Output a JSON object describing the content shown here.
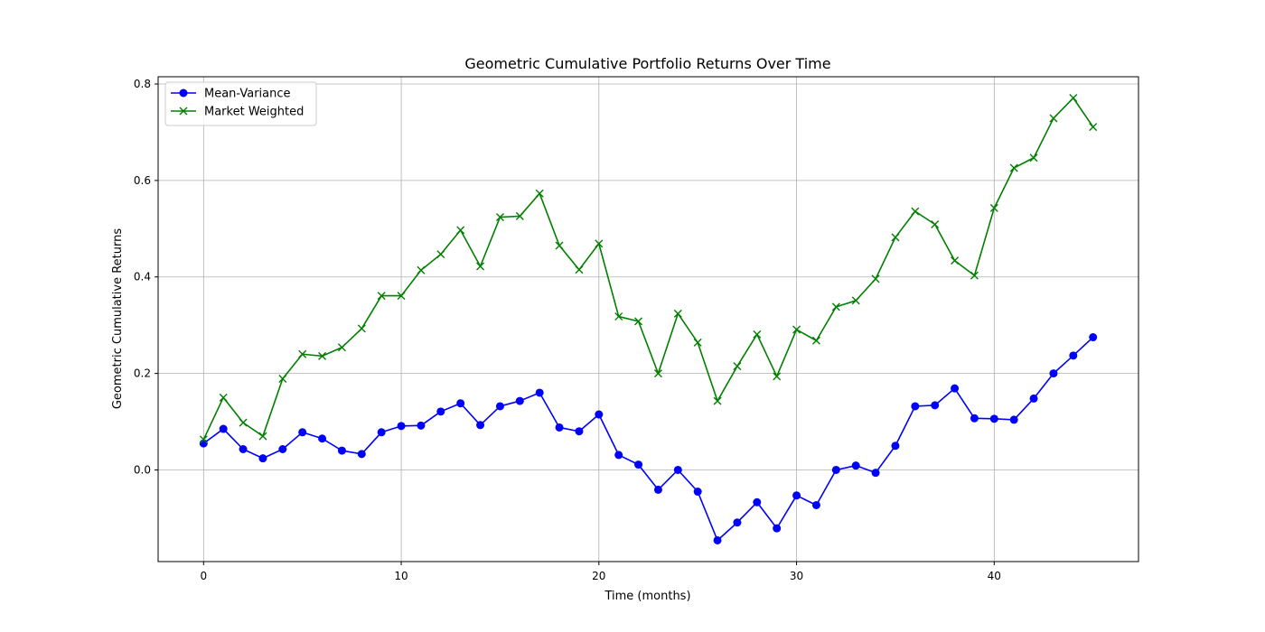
{
  "chart_data": {
    "type": "line",
    "title": "Geometric Cumulative Portfolio Returns Over Time",
    "xlabel": "Time (months)",
    "ylabel": "Geometric Cumulative Returns",
    "xlim": [
      -2.3,
      47.3
    ],
    "ylim": [
      -0.19,
      0.815
    ],
    "xticks": [
      0,
      10,
      20,
      30,
      40
    ],
    "yticks": [
      0.0,
      0.2,
      0.4,
      0.6,
      0.8
    ],
    "ytick_labels": [
      "0.0",
      "0.2",
      "0.4",
      "0.6",
      "0.8"
    ],
    "xtick_labels": [
      "0",
      "10",
      "20",
      "30",
      "40"
    ],
    "grid": true,
    "legend_position": "top-left",
    "x": [
      0,
      1,
      2,
      3,
      4,
      5,
      6,
      7,
      8,
      9,
      10,
      11,
      12,
      13,
      14,
      15,
      16,
      17,
      18,
      19,
      20,
      21,
      22,
      23,
      24,
      25,
      26,
      27,
      28,
      29,
      30,
      31,
      32,
      33,
      34,
      35,
      36,
      37,
      38,
      39,
      40,
      41,
      42,
      43,
      44,
      45
    ],
    "series": [
      {
        "name": "Mean-Variance",
        "color": "#0000ff",
        "marker": "circle",
        "values": [
          0.055,
          0.085,
          0.043,
          0.024,
          0.043,
          0.078,
          0.065,
          0.04,
          0.033,
          0.078,
          0.091,
          0.092,
          0.121,
          0.138,
          0.093,
          0.132,
          0.143,
          0.16,
          0.088,
          0.08,
          0.115,
          0.031,
          0.011,
          -0.041,
          0.0,
          -0.045,
          -0.146,
          -0.109,
          -0.067,
          -0.121,
          -0.053,
          -0.073,
          0.0,
          0.009,
          -0.006,
          0.05,
          0.132,
          0.134,
          0.169,
          0.107,
          0.106,
          0.104,
          0.148,
          0.2,
          0.237,
          0.275
        ]
      },
      {
        "name": "Market Weighted",
        "color": "#008000",
        "marker": "x",
        "values": [
          0.063,
          0.15,
          0.098,
          0.07,
          0.189,
          0.24,
          0.236,
          0.254,
          0.293,
          0.361,
          0.361,
          0.414,
          0.447,
          0.497,
          0.422,
          0.524,
          0.526,
          0.573,
          0.465,
          0.415,
          0.469,
          0.318,
          0.308,
          0.2,
          0.324,
          0.264,
          0.143,
          0.215,
          0.281,
          0.194,
          0.291,
          0.268,
          0.338,
          0.351,
          0.396,
          0.482,
          0.536,
          0.509,
          0.434,
          0.403,
          0.543,
          0.626,
          0.647,
          0.729,
          0.771,
          0.711
        ]
      }
    ]
  }
}
